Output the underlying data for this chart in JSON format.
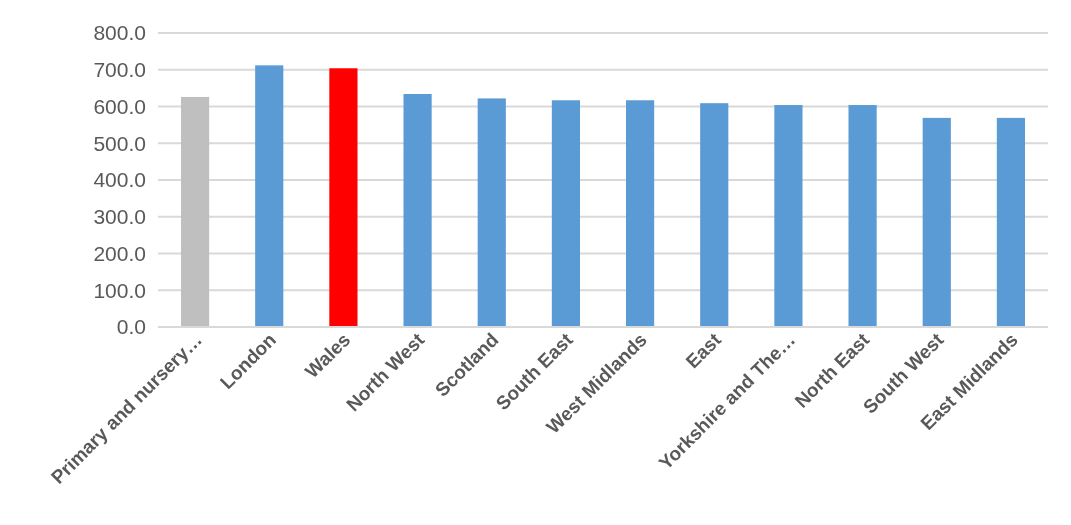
{
  "chart_data": {
    "type": "bar",
    "categories": [
      "Primary and nursery…",
      "London",
      "Wales",
      "North West",
      "Scotland",
      "South East",
      "West Midlands",
      "East",
      "Yorkshire and The…",
      "North East",
      "South West",
      "East Midlands"
    ],
    "values": [
      626,
      712,
      704,
      634,
      622,
      617,
      617,
      609,
      604,
      604,
      569,
      569
    ],
    "colors": [
      "#bfbfbf",
      "#5b9bd5",
      "#ff0000",
      "#5b9bd5",
      "#5b9bd5",
      "#5b9bd5",
      "#5b9bd5",
      "#5b9bd5",
      "#5b9bd5",
      "#5b9bd5",
      "#5b9bd5",
      "#5b9bd5"
    ],
    "ylim": [
      0,
      800
    ],
    "yticks": [
      {
        "value": 0,
        "label": "0.0"
      },
      {
        "value": 100,
        "label": "100.0"
      },
      {
        "value": 200,
        "label": "200.0"
      },
      {
        "value": 300,
        "label": "300.0"
      },
      {
        "value": 400,
        "label": "400.0"
      },
      {
        "value": 500,
        "label": "500.0"
      },
      {
        "value": 600,
        "label": "600.0"
      },
      {
        "value": 700,
        "label": "700.0"
      },
      {
        "value": 800,
        "label": "800.0"
      }
    ],
    "grid": "y"
  }
}
